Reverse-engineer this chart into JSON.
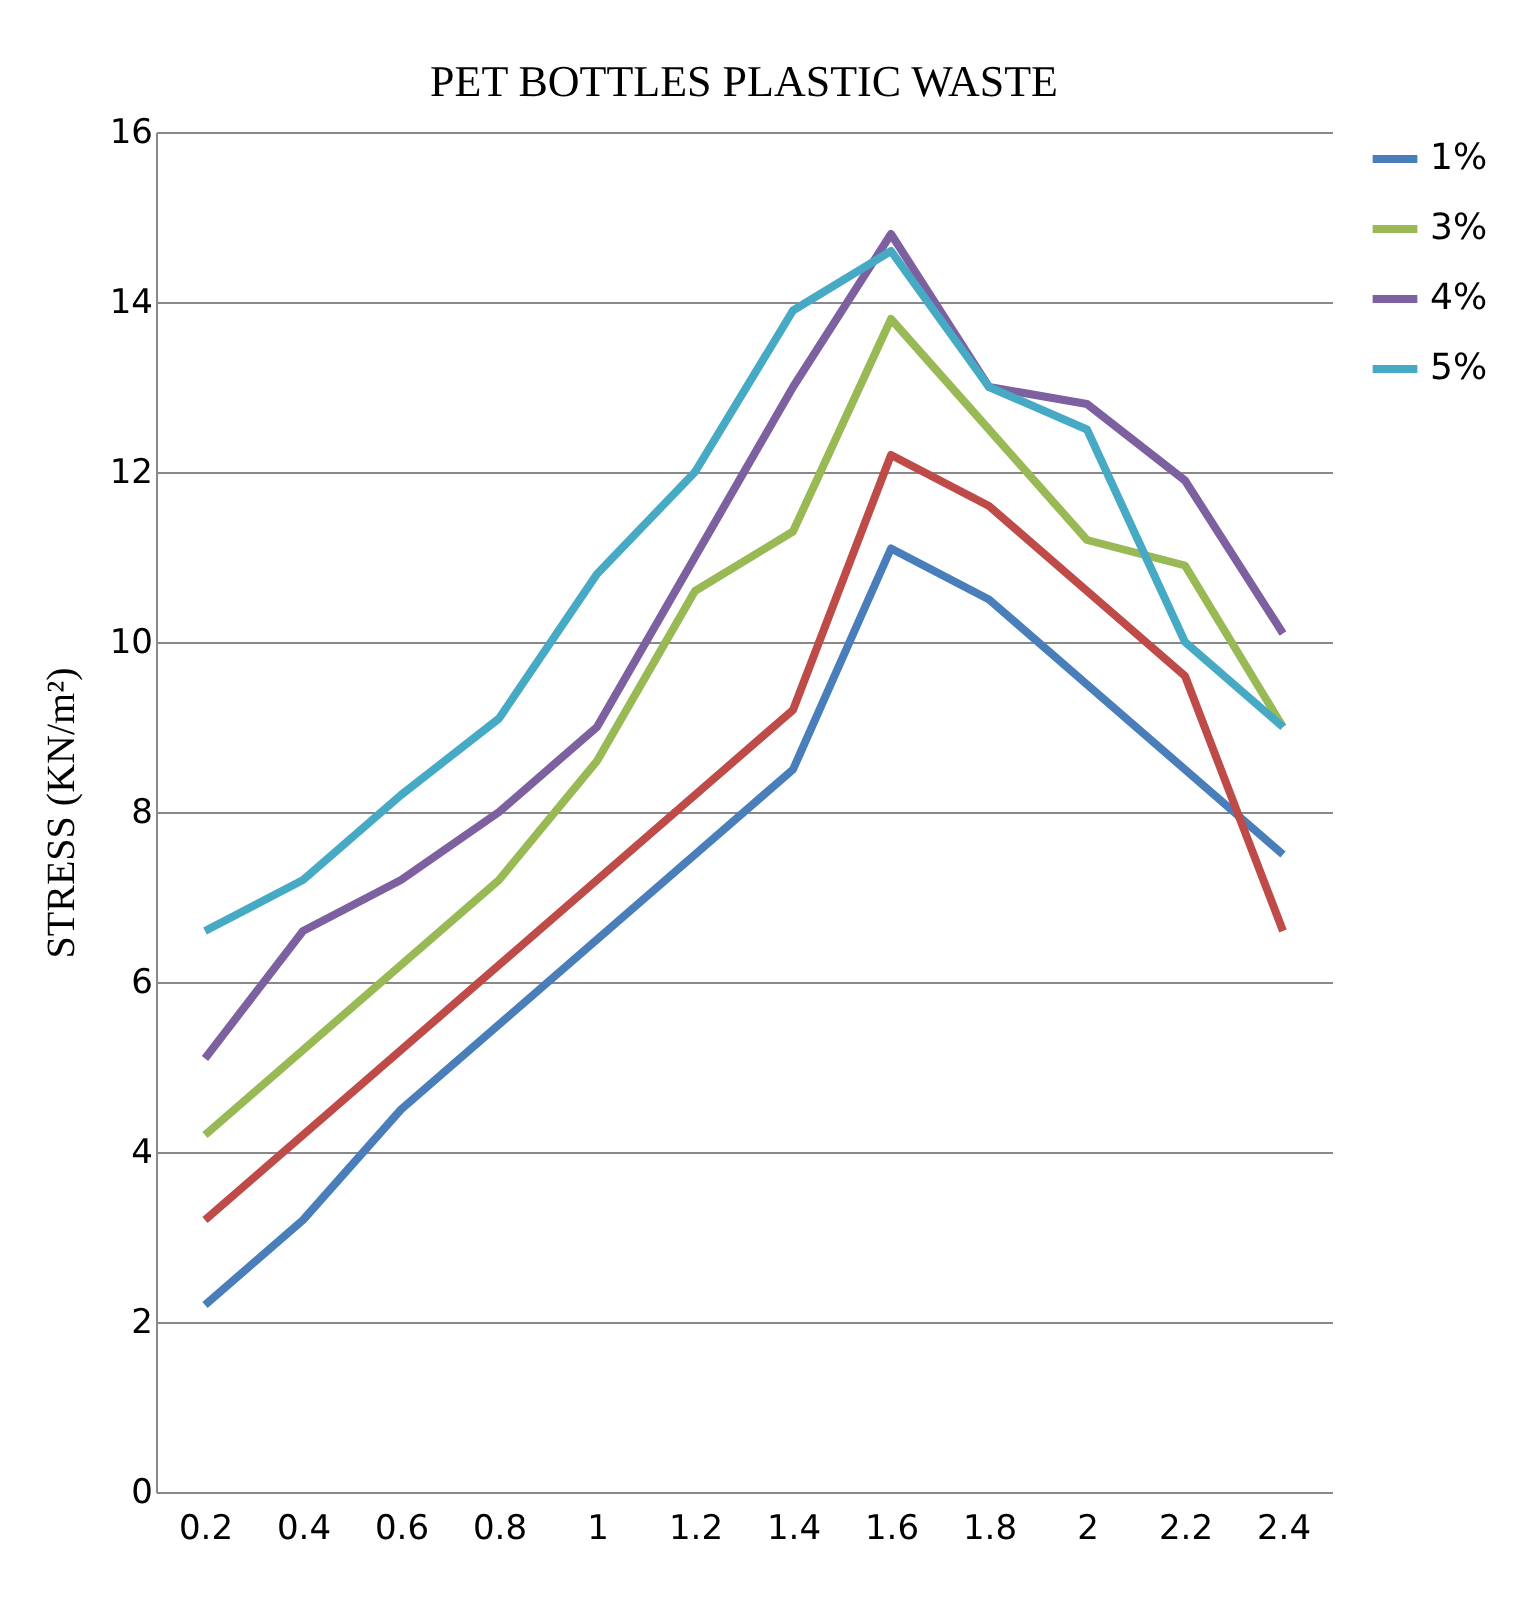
{
  "chart_data": {
    "type": "line",
    "title": "PET BOTTLES PLASTIC WASTE",
    "ylabel": "STRESS (KN/m²)",
    "categories": [
      "0.2",
      "0.4",
      "0.6",
      "0.8",
      "1",
      "1.2",
      "1.4",
      "1.6",
      "1.8",
      "2",
      "2.2",
      "2.4"
    ],
    "series": [
      {
        "name": "1%",
        "color": "#4a7ebb",
        "values": [
          2.2,
          3.2,
          4.5,
          5.5,
          6.5,
          7.5,
          8.5,
          11.1,
          10.5,
          9.5,
          8.5,
          7.5
        ]
      },
      {
        "color": "#be4b48",
        "values": [
          3.2,
          4.2,
          5.2,
          6.2,
          7.2,
          8.2,
          9.2,
          12.2,
          11.6,
          10.6,
          9.6,
          6.6
        ]
      },
      {
        "name": "3%",
        "color": "#98b954",
        "values": [
          4.2,
          5.2,
          6.2,
          7.2,
          8.6,
          10.6,
          11.3,
          13.8,
          12.5,
          11.2,
          10.9,
          9.0
        ]
      },
      {
        "name": "4%",
        "color": "#7d60a0",
        "values": [
          5.1,
          6.6,
          7.2,
          8.0,
          9.0,
          11.0,
          13.0,
          14.8,
          13.0,
          12.8,
          11.9,
          10.1
        ]
      },
      {
        "name": "5%",
        "color": "#46aac5",
        "values": [
          6.6,
          7.2,
          8.2,
          9.1,
          10.8,
          12.0,
          13.9,
          14.6,
          13.0,
          12.5,
          10.0,
          9.0
        ]
      }
    ],
    "ylim": [
      0,
      16
    ],
    "yticks": [
      0,
      2,
      4,
      6,
      8,
      10,
      12,
      14,
      16
    ],
    "grid": "y",
    "legend": "right",
    "marker": "none",
    "line_style": "solid"
  }
}
